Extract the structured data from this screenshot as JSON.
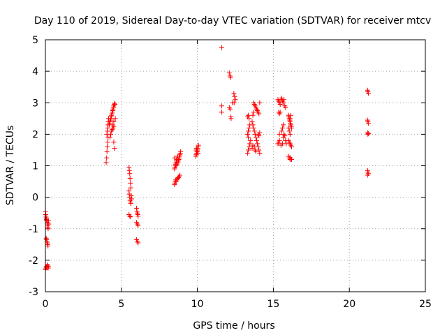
{
  "chart_data": {
    "type": "scatter",
    "title": "Day 110 of 2019, Sidereal Day-to-day VTEC variation (SDTVAR) for receiver mtcv",
    "xlabel": "GPS time / hours",
    "ylabel": "SDTVAR / TECUs",
    "xlim": [
      0,
      25
    ],
    "ylim": [
      -3,
      5
    ],
    "xticks": [
      0,
      5,
      10,
      15,
      20,
      25
    ],
    "yticks": [
      -3,
      -2,
      -1,
      0,
      1,
      2,
      3,
      4,
      5
    ],
    "grid": true,
    "marker": "+",
    "color": "#ff0000",
    "series": [
      {
        "name": "SDTVAR",
        "points": [
          [
            0.0,
            -0.45
          ],
          [
            0.02,
            -0.55
          ],
          [
            0.04,
            -0.6
          ],
          [
            0.05,
            -0.65
          ],
          [
            0.07,
            -0.7
          ],
          [
            0.08,
            -0.72
          ],
          [
            0.1,
            -0.75
          ],
          [
            0.12,
            -0.8
          ],
          [
            0.14,
            -0.85
          ],
          [
            0.15,
            -0.9
          ],
          [
            0.17,
            -0.95
          ],
          [
            0.18,
            -1.0
          ],
          [
            0.2,
            -0.75
          ],
          [
            0.22,
            -0.85
          ],
          [
            0.05,
            -1.3
          ],
          [
            0.08,
            -1.35
          ],
          [
            0.1,
            -1.4
          ],
          [
            0.13,
            -1.45
          ],
          [
            0.15,
            -1.5
          ],
          [
            0.17,
            -1.55
          ],
          [
            0.0,
            -2.3
          ],
          [
            0.03,
            -2.25
          ],
          [
            0.06,
            -2.2
          ],
          [
            0.09,
            -2.22
          ],
          [
            0.12,
            -2.18
          ],
          [
            0.15,
            -2.15
          ],
          [
            0.18,
            -2.25
          ],
          [
            0.2,
            -2.2
          ],
          [
            4.0,
            1.1
          ],
          [
            4.03,
            1.25
          ],
          [
            4.05,
            1.45
          ],
          [
            4.07,
            1.6
          ],
          [
            4.1,
            1.75
          ],
          [
            4.12,
            1.9
          ],
          [
            4.05,
            2.0
          ],
          [
            4.08,
            2.1
          ],
          [
            4.1,
            2.2
          ],
          [
            4.12,
            2.3
          ],
          [
            4.14,
            2.4
          ],
          [
            4.16,
            2.5
          ],
          [
            4.2,
            2.3
          ],
          [
            4.22,
            2.35
          ],
          [
            4.25,
            2.4
          ],
          [
            4.28,
            2.45
          ],
          [
            4.3,
            2.5
          ],
          [
            4.33,
            2.55
          ],
          [
            4.35,
            2.6
          ],
          [
            4.38,
            2.65
          ],
          [
            4.4,
            2.7
          ],
          [
            4.43,
            2.75
          ],
          [
            4.45,
            2.8
          ],
          [
            4.48,
            2.85
          ],
          [
            4.5,
            2.9
          ],
          [
            4.53,
            2.95
          ],
          [
            4.55,
            2.98
          ],
          [
            4.58,
            2.95
          ],
          [
            4.3,
            2.0
          ],
          [
            4.35,
            2.1
          ],
          [
            4.4,
            2.15
          ],
          [
            4.45,
            2.2
          ],
          [
            4.5,
            2.25
          ],
          [
            4.25,
            1.9
          ],
          [
            4.5,
            1.75
          ],
          [
            4.55,
            1.55
          ],
          [
            4.5,
            2.4
          ],
          [
            4.42,
            2.3
          ],
          [
            4.6,
            2.5
          ],
          [
            5.5,
            0.95
          ],
          [
            5.52,
            0.85
          ],
          [
            5.55,
            0.75
          ],
          [
            5.57,
            0.6
          ],
          [
            5.6,
            0.45
          ],
          [
            5.62,
            0.3
          ],
          [
            5.5,
            0.2
          ],
          [
            5.52,
            0.1
          ],
          [
            5.55,
            0.0
          ],
          [
            5.57,
            -0.1
          ],
          [
            5.6,
            -0.15
          ],
          [
            5.62,
            -0.2
          ],
          [
            5.65,
            0.05
          ],
          [
            5.68,
            -0.05
          ],
          [
            5.5,
            -0.55
          ],
          [
            5.55,
            -0.6
          ],
          [
            5.6,
            -0.62
          ],
          [
            6.0,
            -0.35
          ],
          [
            6.02,
            -0.45
          ],
          [
            6.05,
            -0.5
          ],
          [
            6.08,
            -0.55
          ],
          [
            6.1,
            -0.6
          ],
          [
            6.0,
            -0.8
          ],
          [
            6.05,
            -0.85
          ],
          [
            6.1,
            -0.9
          ],
          [
            6.0,
            -1.35
          ],
          [
            6.05,
            -1.4
          ],
          [
            6.1,
            -1.45
          ],
          [
            8.5,
            0.4
          ],
          [
            8.52,
            0.45
          ],
          [
            8.55,
            0.5
          ],
          [
            8.58,
            0.55
          ],
          [
            8.6,
            0.5
          ],
          [
            8.65,
            0.55
          ],
          [
            8.7,
            0.6
          ],
          [
            8.75,
            0.62
          ],
          [
            8.8,
            0.65
          ],
          [
            8.85,
            0.7
          ],
          [
            8.5,
            0.9
          ],
          [
            8.52,
            0.95
          ],
          [
            8.55,
            1.0
          ],
          [
            8.57,
            1.05
          ],
          [
            8.6,
            1.1
          ],
          [
            8.62,
            1.15
          ],
          [
            8.65,
            1.2
          ],
          [
            8.68,
            1.25
          ],
          [
            8.7,
            1.3
          ],
          [
            8.72,
            1.1
          ],
          [
            8.75,
            1.15
          ],
          [
            8.78,
            1.2
          ],
          [
            8.8,
            1.25
          ],
          [
            8.82,
            1.3
          ],
          [
            8.85,
            1.35
          ],
          [
            8.88,
            1.4
          ],
          [
            8.9,
            1.45
          ],
          [
            8.6,
            1.0
          ],
          [
            8.65,
            1.05
          ],
          [
            8.5,
            1.25
          ],
          [
            9.9,
            1.3
          ],
          [
            9.92,
            1.35
          ],
          [
            9.95,
            1.4
          ],
          [
            9.97,
            1.45
          ],
          [
            10.0,
            1.5
          ],
          [
            10.02,
            1.55
          ],
          [
            10.05,
            1.6
          ],
          [
            10.07,
            1.65
          ],
          [
            9.95,
            1.55
          ],
          [
            10.0,
            1.45
          ],
          [
            10.05,
            1.4
          ],
          [
            9.92,
            1.5
          ],
          [
            11.6,
            4.75
          ],
          [
            11.6,
            2.9
          ],
          [
            11.6,
            2.7
          ],
          [
            12.1,
            3.95
          ],
          [
            12.15,
            3.85
          ],
          [
            12.18,
            3.8
          ],
          [
            12.1,
            2.85
          ],
          [
            12.15,
            2.8
          ],
          [
            12.2,
            2.55
          ],
          [
            12.22,
            2.5
          ],
          [
            12.4,
            3.3
          ],
          [
            12.45,
            3.2
          ],
          [
            12.5,
            3.1
          ],
          [
            12.42,
            3.0
          ],
          [
            12.3,
            3.0
          ],
          [
            13.3,
            1.4
          ],
          [
            13.35,
            1.5
          ],
          [
            13.4,
            1.6
          ],
          [
            13.45,
            1.7
          ],
          [
            13.5,
            1.8
          ],
          [
            13.35,
            1.9
          ],
          [
            13.3,
            2.0
          ],
          [
            13.35,
            2.1
          ],
          [
            13.4,
            2.2
          ],
          [
            13.45,
            2.3
          ],
          [
            13.3,
            2.55
          ],
          [
            13.35,
            2.6
          ],
          [
            13.4,
            2.5
          ],
          [
            13.6,
            2.4
          ],
          [
            13.65,
            2.3
          ],
          [
            13.7,
            2.2
          ],
          [
            13.75,
            2.1
          ],
          [
            13.8,
            2.0
          ],
          [
            13.85,
            1.9
          ],
          [
            13.9,
            1.8
          ],
          [
            13.95,
            1.7
          ],
          [
            14.0,
            1.6
          ],
          [
            14.05,
            1.5
          ],
          [
            14.1,
            1.4
          ],
          [
            13.7,
            3.0
          ],
          [
            13.75,
            2.95
          ],
          [
            13.8,
            2.9
          ],
          [
            13.85,
            2.85
          ],
          [
            13.9,
            2.8
          ],
          [
            13.95,
            2.75
          ],
          [
            14.0,
            2.7
          ],
          [
            14.05,
            2.65
          ],
          [
            14.1,
            3.0
          ],
          [
            13.65,
            2.6
          ],
          [
            13.7,
            2.7
          ],
          [
            13.75,
            1.6
          ],
          [
            13.8,
            1.5
          ],
          [
            13.85,
            1.45
          ],
          [
            14.0,
            2.0
          ],
          [
            14.05,
            1.95
          ],
          [
            14.1,
            2.05
          ],
          [
            13.6,
            1.55
          ],
          [
            13.65,
            1.65
          ],
          [
            15.3,
            3.1
          ],
          [
            15.35,
            3.05
          ],
          [
            15.4,
            3.0
          ],
          [
            15.45,
            2.95
          ],
          [
            15.5,
            3.1
          ],
          [
            15.55,
            3.15
          ],
          [
            15.6,
            3.05
          ],
          [
            15.65,
            3.0
          ],
          [
            15.7,
            3.1
          ],
          [
            15.75,
            2.9
          ],
          [
            15.8,
            2.85
          ],
          [
            15.35,
            2.7
          ],
          [
            15.4,
            2.65
          ],
          [
            15.45,
            2.7
          ],
          [
            15.3,
            1.7
          ],
          [
            15.35,
            1.75
          ],
          [
            15.4,
            1.8
          ],
          [
            15.5,
            1.65
          ],
          [
            15.6,
            1.7
          ],
          [
            15.65,
            1.9
          ],
          [
            15.7,
            2.0
          ],
          [
            15.75,
            1.95
          ],
          [
            15.4,
            2.0
          ],
          [
            15.55,
            2.1
          ],
          [
            15.8,
            1.8
          ],
          [
            15.85,
            1.7
          ],
          [
            15.6,
            2.2
          ],
          [
            15.65,
            2.3
          ],
          [
            16.0,
            2.6
          ],
          [
            16.02,
            2.55
          ],
          [
            16.05,
            2.5
          ],
          [
            16.08,
            2.45
          ],
          [
            16.1,
            2.4
          ],
          [
            16.12,
            2.35
          ],
          [
            16.15,
            2.3
          ],
          [
            16.18,
            2.25
          ],
          [
            16.2,
            2.2
          ],
          [
            16.0,
            2.2
          ],
          [
            16.05,
            2.1
          ],
          [
            16.1,
            2.0
          ],
          [
            16.0,
            1.8
          ],
          [
            16.05,
            1.75
          ],
          [
            16.1,
            1.7
          ],
          [
            16.15,
            1.65
          ],
          [
            16.2,
            1.6
          ],
          [
            16.0,
            1.3
          ],
          [
            16.05,
            1.25
          ],
          [
            16.1,
            1.2
          ],
          [
            16.15,
            1.25
          ],
          [
            16.2,
            1.2
          ],
          [
            16.1,
            2.5
          ],
          [
            16.15,
            2.6
          ],
          [
            21.2,
            3.4
          ],
          [
            21.22,
            3.35
          ],
          [
            21.25,
            3.3
          ],
          [
            21.2,
            2.45
          ],
          [
            21.22,
            2.4
          ],
          [
            21.25,
            2.35
          ],
          [
            21.2,
            2.05
          ],
          [
            21.22,
            2.0
          ],
          [
            21.25,
            2.02
          ],
          [
            21.2,
            0.85
          ],
          [
            21.22,
            0.8
          ],
          [
            21.25,
            0.75
          ],
          [
            21.2,
            0.7
          ]
        ]
      }
    ]
  }
}
